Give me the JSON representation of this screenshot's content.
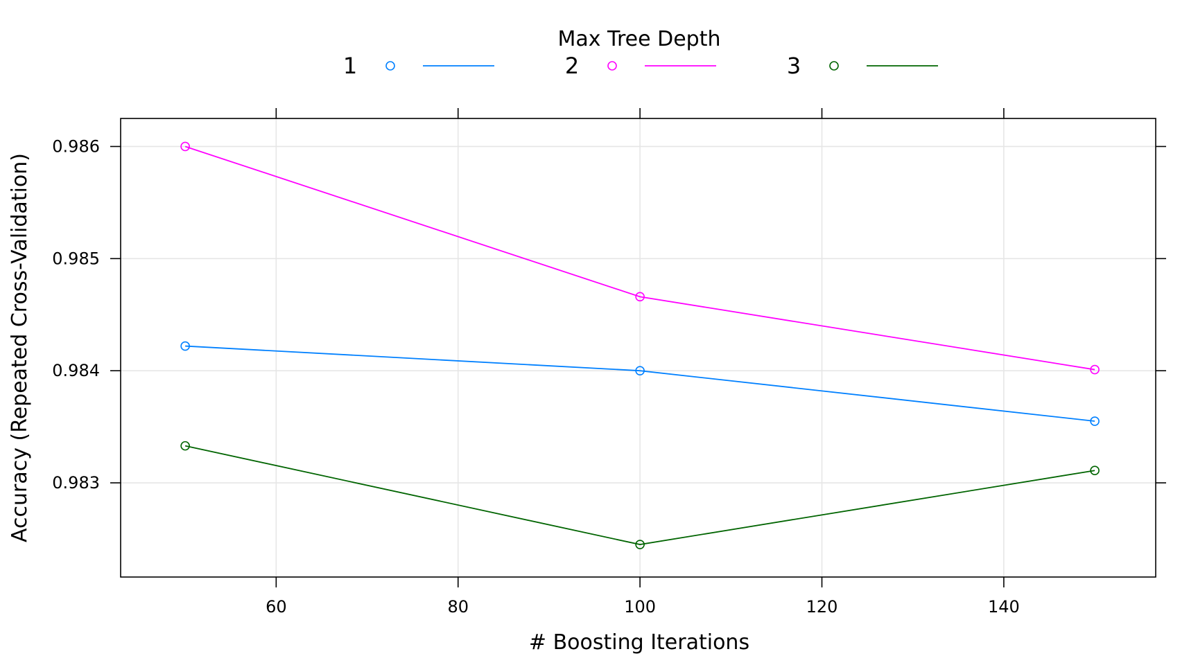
{
  "chart_data": {
    "type": "line",
    "legend_title": "Max Tree Depth",
    "legend_placement": "top",
    "xlabel": "# Boosting Iterations",
    "ylabel": "Accuracy (Repeated Cross-Validation)",
    "x": [
      50,
      100,
      150
    ],
    "xlim": [
      42.9,
      156.7
    ],
    "ylim": [
      0.98216,
      0.98625
    ],
    "xticks": [
      60,
      80,
      100,
      120,
      140
    ],
    "yticks": [
      0.983,
      0.984,
      0.985,
      0.986
    ],
    "xtick_labels": [
      "60",
      "80",
      "100",
      "120",
      "140"
    ],
    "ytick_labels": [
      "0.983",
      "0.984",
      "0.985",
      "0.986"
    ],
    "grid": true,
    "series": [
      {
        "name": "1",
        "color": "#0080ff",
        "values": [
          0.98422,
          0.984,
          0.98355
        ]
      },
      {
        "name": "2",
        "color": "#ff00ff",
        "values": [
          0.986,
          0.98466,
          0.98401
        ]
      },
      {
        "name": "3",
        "color": "#006400",
        "values": [
          0.98333,
          0.98245,
          0.98311
        ]
      }
    ]
  }
}
